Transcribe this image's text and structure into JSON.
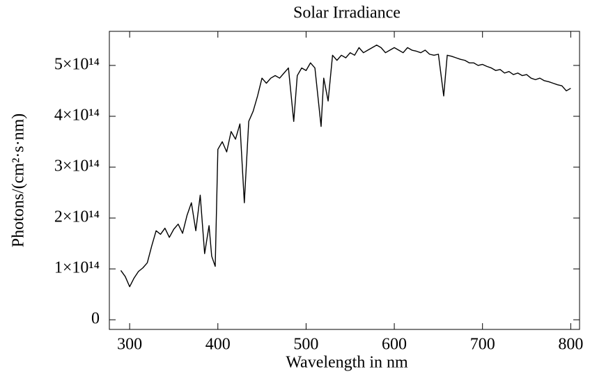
{
  "chart_data": {
    "type": "line",
    "title": "Solar Irradiance",
    "x_label": "Wavelength in nm",
    "y_label": "Photons/(cm²·s·nm)",
    "xlim": [
      277,
      810
    ],
    "ylim": [
      -19000000000000.0,
      567000000000000.0
    ],
    "xticks": [
      300,
      400,
      500,
      600,
      700,
      800
    ],
    "yticks": [
      0,
      {
        "value": 100000000000000.0,
        "label": "1×10¹⁴"
      },
      {
        "value": 200000000000000.0,
        "label": "2×10¹⁴"
      },
      {
        "value": 300000000000000.0,
        "label": "3×10¹⁴"
      },
      {
        "value": 400000000000000.0,
        "label": "4×10¹⁴"
      },
      {
        "value": 500000000000000.0,
        "label": "5×10¹⁴"
      }
    ],
    "grid": false,
    "x": [
      290,
      295,
      300,
      305,
      310,
      315,
      320,
      325,
      330,
      335,
      340,
      345,
      350,
      355,
      360,
      365,
      370,
      375,
      380,
      385,
      390,
      393,
      397,
      400,
      405,
      410,
      415,
      420,
      425,
      430,
      435,
      440,
      445,
      450,
      455,
      460,
      465,
      470,
      475,
      480,
      486,
      490,
      495,
      500,
      505,
      510,
      517,
      520,
      525,
      530,
      535,
      540,
      545,
      550,
      555,
      560,
      565,
      570,
      575,
      580,
      585,
      590,
      595,
      600,
      605,
      610,
      615,
      620,
      625,
      630,
      635,
      640,
      645,
      650,
      656,
      660,
      665,
      670,
      675,
      680,
      685,
      690,
      695,
      700,
      705,
      710,
      715,
      720,
      725,
      730,
      735,
      740,
      745,
      750,
      755,
      760,
      765,
      770,
      775,
      780,
      785,
      790,
      795,
      800
    ],
    "series": [
      {
        "color": "#000000",
        "values": [
          97000000000000.0,
          85000000000000.0,
          65000000000000.0,
          82000000000000.0,
          95000000000000.0,
          102000000000000.0,
          112000000000000.0,
          145000000000000.0,
          175000000000000.0,
          168000000000000.0,
          180000000000000.0,
          162000000000000.0,
          178000000000000.0,
          188000000000000.0,
          170000000000000.0,
          205000000000000.0,
          230000000000000.0,
          175000000000000.0,
          245000000000000.0,
          130000000000000.0,
          185000000000000.0,
          125000000000000.0,
          105000000000000.0,
          335000000000000.0,
          350000000000000.0,
          330000000000000.0,
          370000000000000.0,
          355000000000000.0,
          385000000000000.0,
          230000000000000.0,
          390000000000000.0,
          410000000000000.0,
          440000000000000.0,
          475000000000000.0,
          465000000000000.0,
          475000000000000.0,
          480000000000000.0,
          475000000000000.0,
          485000000000000.0,
          495000000000000.0,
          390000000000000.0,
          480000000000000.0,
          495000000000000.0,
          490000000000000.0,
          505000000000000.0,
          495000000000000.0,
          380000000000000.0,
          475000000000000.0,
          430000000000000.0,
          520000000000000.0,
          510000000000000.0,
          520000000000000.0,
          515000000000000.0,
          525000000000000.0,
          520000000000000.0,
          535000000000000.0,
          525000000000000.0,
          530000000000000.0,
          535000000000000.0,
          540000000000000.0,
          535000000000000.0,
          525000000000000.0,
          530000000000000.0,
          535000000000000.0,
          530000000000000.0,
          525000000000000.0,
          535000000000000.0,
          530000000000000.0,
          528000000000000.0,
          525000000000000.0,
          530000000000000.0,
          522000000000000.0,
          520000000000000.0,
          522000000000000.0,
          440000000000000.0,
          520000000000000.0,
          518000000000000.0,
          515000000000000.0,
          512000000000000.0,
          510000000000000.0,
          505000000000000.0,
          505000000000000.0,
          500000000000000.0,
          502000000000000.0,
          498000000000000.0,
          495000000000000.0,
          490000000000000.0,
          492000000000000.0,
          485000000000000.0,
          488000000000000.0,
          482000000000000.0,
          485000000000000.0,
          480000000000000.0,
          482000000000000.0,
          475000000000000.0,
          472000000000000.0,
          475000000000000.0,
          470000000000000.0,
          468000000000000.0,
          465000000000000.0,
          462000000000000.0,
          460000000000000.0,
          450000000000000.0,
          455000000000000.0
        ]
      }
    ]
  }
}
